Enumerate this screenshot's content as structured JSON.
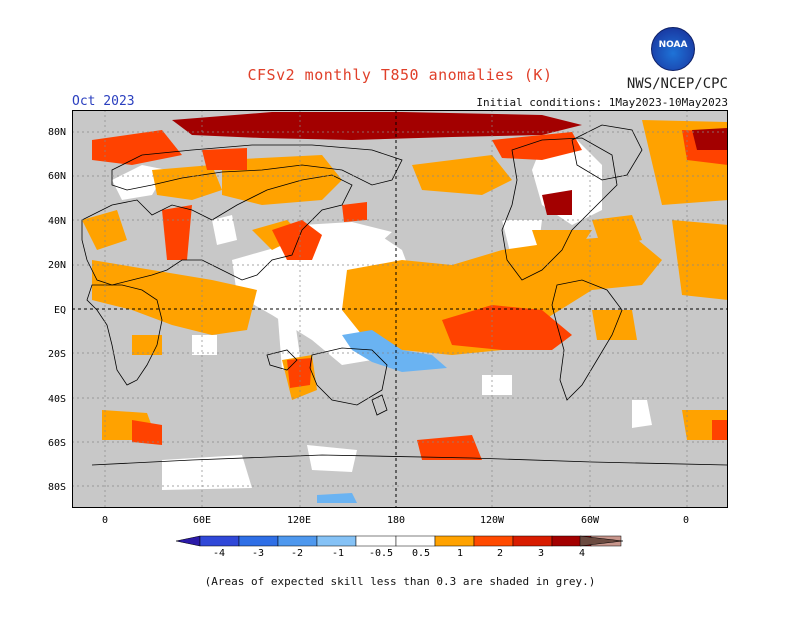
{
  "header": {
    "title": "CFSv2 monthly T850 anomalies (K)",
    "agency": "NWS/NCEP/CPC",
    "month": "Oct 2023",
    "initial_conditions": "Initial conditions: 1May2023-10May2023",
    "logo_text": "NOAA"
  },
  "map": {
    "lat_labels": [
      "80N",
      "60N",
      "40N",
      "20N",
      "EQ",
      "20S",
      "40S",
      "60S",
      "80S"
    ],
    "lon_labels": [
      "0",
      "60E",
      "120E",
      "180",
      "120W",
      "60W",
      "0"
    ],
    "colors": {
      "ocean_grey": "#c8c8c8",
      "land_line": "#000000",
      "warm_05": "#ffa200",
      "warm_1": "#ff4200",
      "warm_2": "#a30000",
      "cool_05": "#6ab3f2",
      "neutral": "#ffffff"
    }
  },
  "colorbar": {
    "labels": [
      "-4",
      "-3",
      "-2",
      "-1",
      "-0.5",
      "0.5",
      "1",
      "2",
      "3",
      "4"
    ],
    "colors": [
      "#2b1aa8",
      "#3048d8",
      "#2f6fe6",
      "#4e98ee",
      "#85c2f6",
      "#ffffff",
      "#ffa200",
      "#ff4a00",
      "#d81c00",
      "#a30000",
      "#c8968c",
      "#6b4a40"
    ]
  },
  "footnote": "(Areas of expected skill less than 0.3 are shaded in grey.)"
}
